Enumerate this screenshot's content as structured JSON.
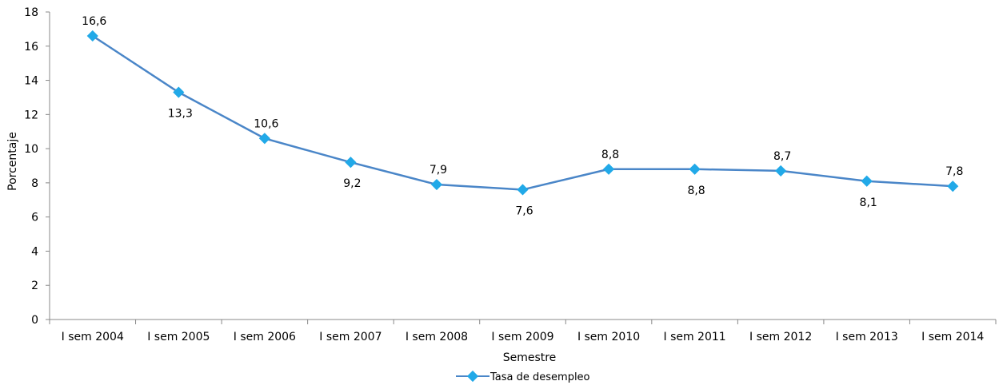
{
  "chart_data": {
    "type": "line",
    "title": "",
    "xlabel": "Semestre",
    "ylabel": "Porcentaje",
    "ylim": [
      0,
      18
    ],
    "ytick_step": 2,
    "yticks": [
      "0",
      "2",
      "4",
      "6",
      "8",
      "10",
      "12",
      "14",
      "16",
      "18"
    ],
    "grid": false,
    "legend_position": "bottom",
    "categories": [
      "I sem 2004",
      "I sem 2005",
      "I sem 2006",
      "I sem 2007",
      "I sem 2008",
      "I sem 2009",
      "I sem 2010",
      "I sem 2011",
      "I sem 2012",
      "I sem 2013",
      "I sem 2014"
    ],
    "series": [
      {
        "name": "Tasa de desempleo",
        "color": "#4a86c8",
        "marker_color": "#21a9e8",
        "values": [
          16.6,
          13.3,
          10.6,
          9.2,
          7.9,
          7.6,
          8.8,
          8.8,
          8.7,
          8.1,
          7.8
        ],
        "data_labels": [
          "16,6",
          "13,3",
          "10,6",
          "9,2",
          "7,9",
          "7,6",
          "8,8",
          "8,8",
          "8,7",
          "8,1",
          "7,8"
        ],
        "label_side": [
          "above",
          "below",
          "above",
          "below",
          "above",
          "below",
          "above",
          "below",
          "above",
          "below",
          "above"
        ]
      }
    ]
  }
}
